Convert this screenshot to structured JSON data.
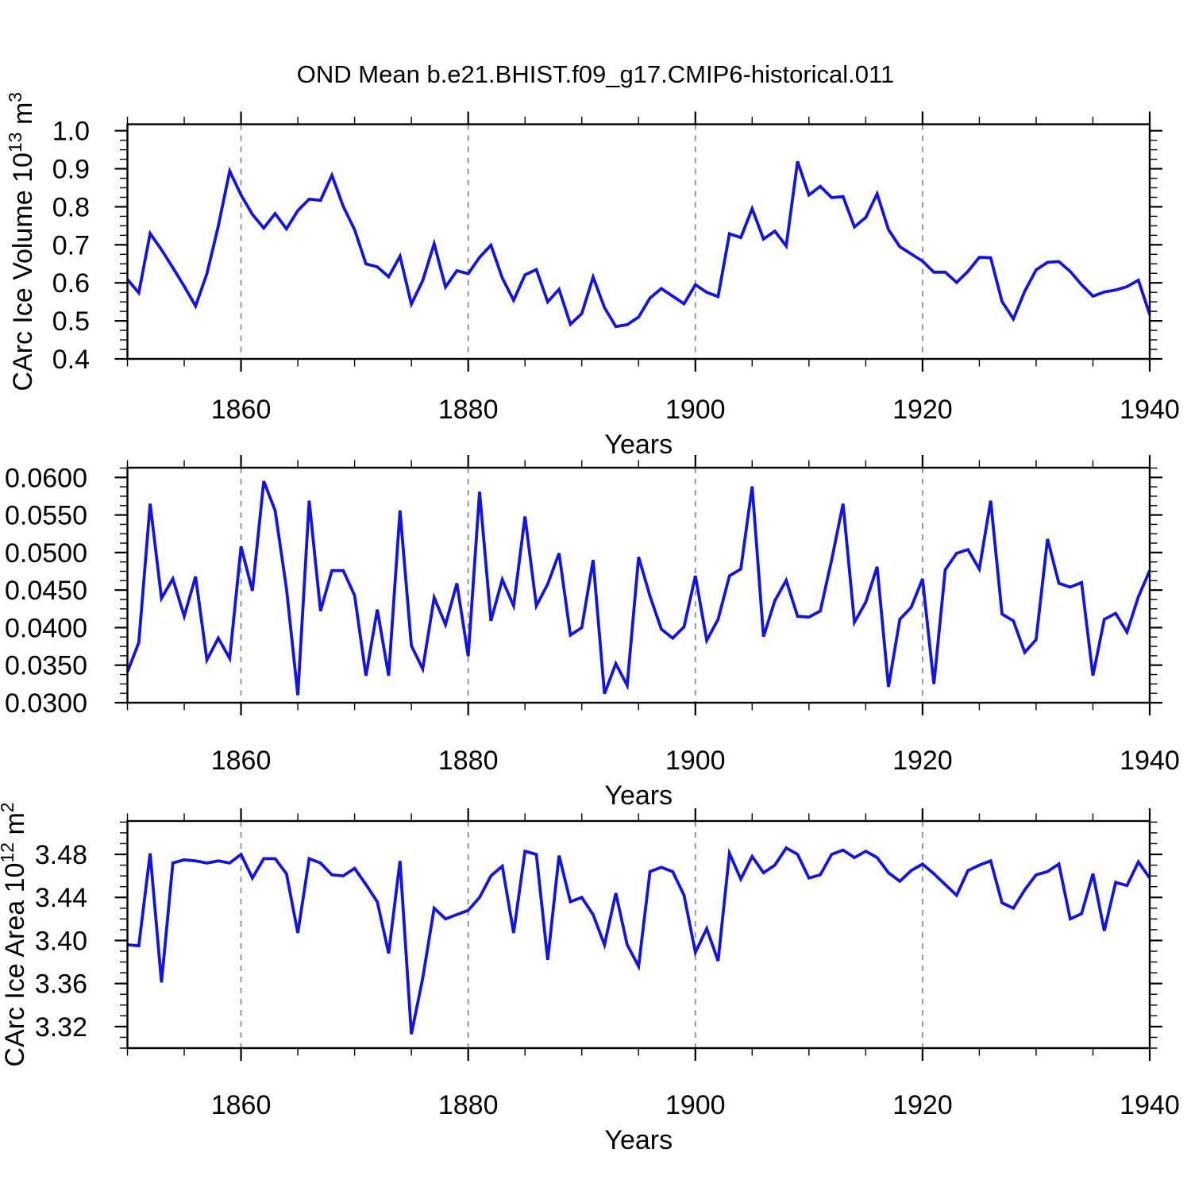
{
  "title": "OND Mean b.e21.BHIST.f09_g17.CMIP6-historical.011",
  "colors": {
    "line": "#1414e1",
    "axis": "#000000",
    "grid": "#999999",
    "background": "#ffffff",
    "text": "#000000"
  },
  "chart_data": {
    "type": "line",
    "title": "OND Mean b.e21.BHIST.f09_g17.CMIP6-historical.011",
    "x_label": "Years",
    "x_ticks": [
      1860,
      1880,
      1900,
      1920,
      1940
    ],
    "x_tick_labels": [
      "1860",
      "1880",
      "1900",
      "1920",
      "1940"
    ],
    "x_minor_step": 5,
    "grid_years": [
      1860,
      1880,
      1900,
      1920
    ],
    "xlim": [
      1850,
      1940
    ],
    "grid": "vertical-dashed-only",
    "legend": "none",
    "years": [
      1850,
      1851,
      1852,
      1853,
      1854,
      1855,
      1856,
      1857,
      1858,
      1859,
      1860,
      1861,
      1862,
      1863,
      1864,
      1865,
      1866,
      1867,
      1868,
      1869,
      1870,
      1871,
      1872,
      1873,
      1874,
      1875,
      1876,
      1877,
      1878,
      1879,
      1880,
      1881,
      1882,
      1883,
      1884,
      1885,
      1886,
      1887,
      1888,
      1889,
      1890,
      1891,
      1892,
      1893,
      1894,
      1895,
      1896,
      1897,
      1898,
      1899,
      1900,
      1901,
      1902,
      1903,
      1904,
      1905,
      1906,
      1907,
      1908,
      1909,
      1910,
      1911,
      1912,
      1913,
      1914,
      1915,
      1916,
      1917,
      1918,
      1919,
      1920,
      1921,
      1922,
      1923,
      1924,
      1925,
      1926,
      1927,
      1928,
      1929,
      1930,
      1931,
      1932,
      1933,
      1934,
      1935,
      1936,
      1937,
      1938,
      1939,
      1940
    ],
    "panels": [
      {
        "id": "ice-volume",
        "ylabel_plain": "CArc Ice Volume 10^13 m^3",
        "ylabel_parts": [
          {
            "t": "CArc Ice Volume 10"
          },
          {
            "t": "13",
            "sup": true
          },
          {
            "t": " m"
          },
          {
            "t": "3",
            "sup": true
          }
        ],
        "ylim": [
          0.4,
          1.017
        ],
        "ytick_values": [
          0.4,
          0.5,
          0.6,
          0.7,
          0.8,
          0.9,
          1.0
        ],
        "ytick_labels": [
          "0.4",
          "0.5",
          "0.6",
          "0.7",
          "0.8",
          "0.9",
          "1.0"
        ],
        "y_minor_step": 0.025,
        "values": [
          0.609,
          0.574,
          0.73,
          0.687,
          0.64,
          0.591,
          0.539,
          0.624,
          0.749,
          0.894,
          0.831,
          0.78,
          0.744,
          0.782,
          0.742,
          0.79,
          0.82,
          0.817,
          0.883,
          0.801,
          0.74,
          0.65,
          0.642,
          0.616,
          0.67,
          0.544,
          0.606,
          0.703,
          0.589,
          0.632,
          0.624,
          0.667,
          0.699,
          0.613,
          0.554,
          0.621,
          0.635,
          0.55,
          0.583,
          0.491,
          0.519,
          0.615,
          0.535,
          0.485,
          0.49,
          0.51,
          0.56,
          0.585,
          0.565,
          0.545,
          0.595,
          0.575,
          0.564,
          0.729,
          0.719,
          0.795,
          0.715,
          0.736,
          0.697,
          0.919,
          0.831,
          0.854,
          0.824,
          0.827,
          0.747,
          0.772,
          0.834,
          0.74,
          0.695,
          0.676,
          0.657,
          0.628,
          0.628,
          0.601,
          0.63,
          0.667,
          0.666,
          0.551,
          0.505,
          0.578,
          0.634,
          0.654,
          0.656,
          0.63,
          0.595,
          0.565,
          0.576,
          0.581,
          0.59,
          0.607,
          0.517
        ]
      },
      {
        "id": "ice-middle",
        "ylabel_plain": "",
        "ylabel_parts": [],
        "ylim": [
          0.03,
          0.0613
        ],
        "ytick_values": [
          0.03,
          0.035,
          0.04,
          0.045,
          0.05,
          0.055,
          0.06
        ],
        "ytick_labels": [
          "0.0300",
          "0.0350",
          "0.0400",
          "0.0450",
          "0.0500",
          "0.0550",
          "0.0600"
        ],
        "y_minor_step": 0.00125,
        "values": [
          0.0341,
          0.038,
          0.0565,
          0.0439,
          0.0465,
          0.0415,
          0.0468,
          0.0357,
          0.0386,
          0.0359,
          0.0508,
          0.0449,
          0.0595,
          0.0556,
          0.0452,
          0.031,
          0.0569,
          0.0422,
          0.0476,
          0.0476,
          0.0443,
          0.0336,
          0.0424,
          0.0336,
          0.0556,
          0.0376,
          0.0345,
          0.044,
          0.0404,
          0.0459,
          0.0362,
          0.0581,
          0.0409,
          0.0464,
          0.0429,
          0.0548,
          0.0429,
          0.0458,
          0.0499,
          0.039,
          0.04,
          0.049,
          0.0312,
          0.0352,
          0.0323,
          0.0494,
          0.0442,
          0.0398,
          0.0386,
          0.0401,
          0.0469,
          0.0383,
          0.0411,
          0.0469,
          0.0478,
          0.0588,
          0.0388,
          0.0436,
          0.0463,
          0.0415,
          0.0414,
          0.0422,
          0.049,
          0.0565,
          0.0407,
          0.0434,
          0.0481,
          0.0321,
          0.0411,
          0.0427,
          0.0465,
          0.0325,
          0.0477,
          0.0499,
          0.0504,
          0.0478,
          0.0569,
          0.0418,
          0.0409,
          0.0367,
          0.0384,
          0.0518,
          0.0459,
          0.0454,
          0.046,
          0.0336,
          0.0411,
          0.0419,
          0.0394,
          0.0441,
          0.0476
        ]
      },
      {
        "id": "ice-area",
        "ylabel_plain": "CArc Ice Area 10^12 m^2",
        "ylabel_parts": [
          {
            "t": "CArc Ice Area 10"
          },
          {
            "t": "12",
            "sup": true
          },
          {
            "t": " m"
          },
          {
            "t": "2",
            "sup": true
          }
        ],
        "ylim": [
          3.3,
          3.511
        ],
        "ytick_values": [
          3.32,
          3.36,
          3.4,
          3.44,
          3.48
        ],
        "ytick_labels": [
          "3.32",
          "3.36",
          "3.40",
          "3.44",
          "3.48"
        ],
        "y_minor_step": 0.01,
        "values": [
          3.396,
          3.395,
          3.481,
          3.361,
          3.472,
          3.475,
          3.474,
          3.472,
          3.474,
          3.472,
          3.48,
          3.458,
          3.476,
          3.476,
          3.462,
          3.407,
          3.476,
          3.472,
          3.461,
          3.46,
          3.467,
          3.452,
          3.436,
          3.388,
          3.474,
          3.313,
          3.365,
          3.43,
          3.42,
          3.424,
          3.428,
          3.44,
          3.46,
          3.469,
          3.407,
          3.483,
          3.48,
          3.382,
          3.479,
          3.436,
          3.44,
          3.424,
          3.396,
          3.444,
          3.396,
          3.376,
          3.464,
          3.468,
          3.464,
          3.442,
          3.389,
          3.411,
          3.381,
          3.481,
          3.457,
          3.478,
          3.463,
          3.47,
          3.486,
          3.48,
          3.458,
          3.461,
          3.48,
          3.484,
          3.477,
          3.483,
          3.477,
          3.463,
          3.455,
          3.465,
          3.471,
          3.462,
          3.452,
          3.442,
          3.465,
          3.47,
          3.474,
          3.435,
          3.43,
          3.447,
          3.461,
          3.464,
          3.471,
          3.42,
          3.425,
          3.462,
          3.409,
          3.454,
          3.451,
          3.473,
          3.458
        ]
      }
    ]
  }
}
